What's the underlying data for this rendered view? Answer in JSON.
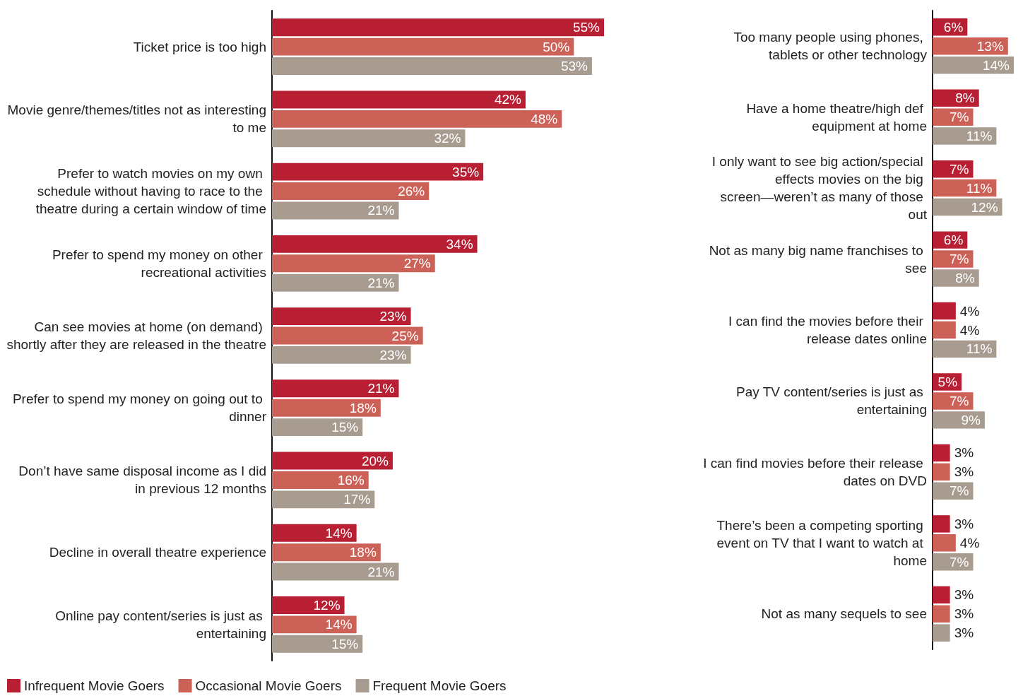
{
  "chart_data": [
    {
      "type": "bar",
      "orientation": "horizontal",
      "legend": "bottom left",
      "categories": [
        "Ticket price is too high",
        "Movie genre/themes/titles not as interesting to me",
        "Prefer to watch movies on my own schedule without having to race to the theatre during a certain window of time",
        "Prefer to spend my money on other recreational activities",
        "Can see movies at home (on demand) shortly after they are released in the theatre",
        "Prefer to spend my money on going out to dinner",
        "Don’t have same disposal income as I did in previous 12 months",
        "Decline in overall theatre experience",
        "Online pay content/series is just as entertaining"
      ],
      "series": [
        {
          "name": "Infrequent Movie Goers",
          "color": "#b81f33",
          "values": [
            55,
            42,
            35,
            34,
            23,
            21,
            20,
            14,
            12
          ],
          "value_labels": [
            "55%",
            "42%",
            "35%",
            "34%",
            "23%",
            "21%",
            "20%",
            "14%",
            "12%"
          ]
        },
        {
          "name": "Occasional Movie Goers",
          "color": "#cc6158",
          "values": [
            50,
            48,
            26,
            27,
            25,
            18,
            16,
            18,
            14
          ],
          "value_labels": [
            "50%",
            "48%",
            "26%",
            "27%",
            "25%",
            "18%",
            "16%",
            "18%",
            "14%"
          ]
        },
        {
          "name": "Frequent Movie Goers",
          "color": "#a89b90",
          "values": [
            53,
            32,
            21,
            21,
            23,
            15,
            17,
            21,
            15
          ],
          "value_labels": [
            "53%",
            "32%",
            "21%",
            "21%",
            "23%",
            "15%",
            "17%",
            "21%",
            "15%"
          ]
        }
      ]
    },
    {
      "type": "bar",
      "orientation": "horizontal",
      "legend": false,
      "categories": [
        "Too many people using phones, tablets or other technology",
        "Have a home theatre/high def equipment at home",
        "I only want to see big action/special effects movies on the big screen—weren’t as many of those out",
        "Not as many big name franchises to see",
        "I can find the movies before their release dates online",
        "Pay TV content/series is just as entertaining",
        "I can find movies before their release dates on DVD",
        "There’s been a competing sporting event on TV that I want to watch at home",
        "Not as many sequels to see"
      ],
      "series": [
        {
          "color": "#b81f33",
          "values": [
            6,
            8,
            7,
            6,
            4,
            5,
            3,
            3,
            3
          ],
          "value_labels": [
            "6%",
            "8%",
            "7%",
            "6%",
            "4%",
            "5%",
            "3%",
            "3%",
            "3%"
          ]
        },
        {
          "color": "#cc6158",
          "values": [
            13,
            7,
            11,
            7,
            4,
            7,
            3,
            4,
            3
          ],
          "value_labels": [
            "13%",
            "7%",
            "11%",
            "7%",
            "4%",
            "7%",
            "3%",
            "4%",
            "3%"
          ]
        },
        {
          "color": "#a89b90",
          "values": [
            14,
            11,
            12,
            8,
            11,
            9,
            7,
            7,
            3
          ],
          "value_labels": [
            "14%",
            "11%",
            "12%",
            "8%",
            "11%",
            "9%",
            "7%",
            "7%",
            "3%"
          ]
        }
      ]
    }
  ]
}
